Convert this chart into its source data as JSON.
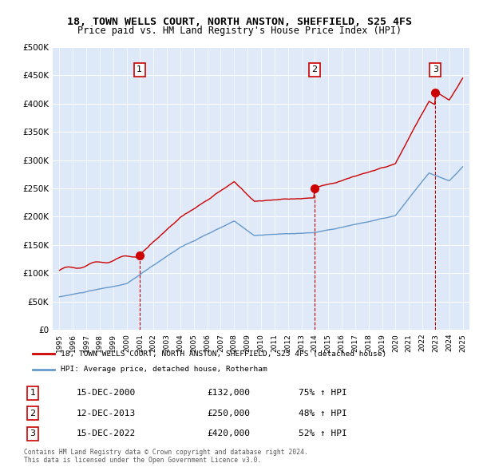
{
  "title_line1": "18, TOWN WELLS COURT, NORTH ANSTON, SHEFFIELD, S25 4FS",
  "title_line2": "Price paid vs. HM Land Registry's House Price Index (HPI)",
  "ylabel_ticks": [
    "£0",
    "£50K",
    "£100K",
    "£150K",
    "£200K",
    "£250K",
    "£300K",
    "£350K",
    "£400K",
    "£450K",
    "£500K"
  ],
  "ytick_values": [
    0,
    50000,
    100000,
    150000,
    200000,
    250000,
    300000,
    350000,
    400000,
    450000,
    500000
  ],
  "xlim": [
    1994.5,
    2025.5
  ],
  "ylim": [
    0,
    500000
  ],
  "bg_color": "#dde8f8",
  "plot_bg_color": "#dde8f8",
  "grid_color": "#ffffff",
  "red_line_color": "#cc0000",
  "blue_line_color": "#6699cc",
  "sale_marker_color": "#cc0000",
  "dashed_line_color": "#cc0000",
  "sale_points": [
    {
      "year": 2000.96,
      "price": 132000,
      "label": "1"
    },
    {
      "year": 2013.96,
      "price": 250000,
      "label": "2"
    },
    {
      "year": 2022.96,
      "price": 420000,
      "label": "3"
    }
  ],
  "legend_entry1": "18, TOWN WELLS COURT, NORTH ANSTON, SHEFFIELD, S25 4FS (detached house)",
  "legend_entry2": "HPI: Average price, detached house, Rotherham",
  "table_rows": [
    {
      "num": "1",
      "date": "15-DEC-2000",
      "price": "£132,000",
      "change": "75% ↑ HPI"
    },
    {
      "num": "2",
      "date": "12-DEC-2013",
      "price": "£250,000",
      "change": "48% ↑ HPI"
    },
    {
      "num": "3",
      "date": "15-DEC-2022",
      "price": "£420,000",
      "change": "52% ↑ HPI"
    }
  ],
  "footnote": "Contains HM Land Registry data © Crown copyright and database right 2024.\nThis data is licensed under the Open Government Licence v3.0.",
  "shaded_region_start": 2000.96,
  "shaded_region_end": 2022.96
}
